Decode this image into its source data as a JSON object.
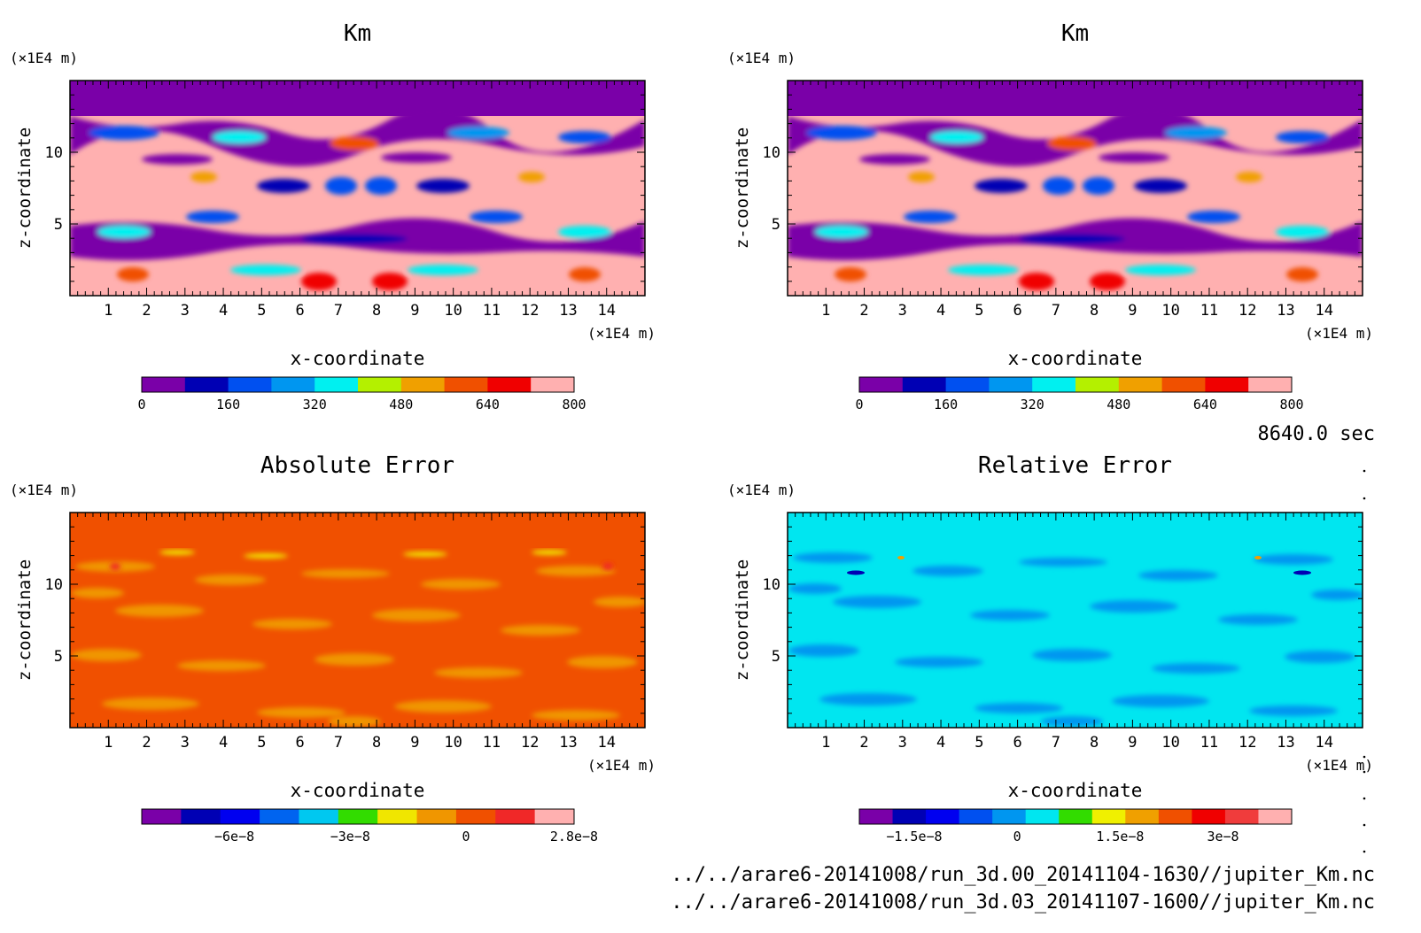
{
  "time_label": "8640.0 sec",
  "files": [
    "../../arare6-20141008/run_3d.00_20141104-1630//jupiter_Km.nc",
    "../../arare6-20141008/run_3d.03_20141107-1600//jupiter_Km.nc"
  ],
  "chart_data": [
    {
      "type": "heatmap",
      "title": "Km",
      "xlabel": "x-coordinate",
      "ylabel": "z-coordinate",
      "x_unit": "(×1E4 m)",
      "y_unit": "(×1E4 m)",
      "xlim": [
        0,
        15
      ],
      "ylim": [
        0,
        15
      ],
      "x_ticks": [
        "1",
        "2",
        "3",
        "4",
        "5",
        "6",
        "7",
        "8",
        "9",
        "10",
        "11",
        "12",
        "13",
        "14"
      ],
      "y_ticks": [
        "5",
        "10"
      ],
      "colorbar": {
        "colors": [
          "#7a00a8",
          "#0000b4",
          "#0050f0",
          "#0096f0",
          "#00f0f0",
          "#b4f000",
          "#f0a000",
          "#f05000",
          "#f00000",
          "#ffb0b0"
        ],
        "tick_labels": [
          "0",
          "160",
          "320",
          "480",
          "640",
          "800"
        ],
        "range": [
          0,
          800
        ]
      }
    },
    {
      "type": "heatmap",
      "title": "Km",
      "xlabel": "x-coordinate",
      "ylabel": "z-coordinate",
      "x_unit": "(×1E4 m)",
      "y_unit": "(×1E4 m)",
      "xlim": [
        0,
        15
      ],
      "ylim": [
        0,
        15
      ],
      "x_ticks": [
        "1",
        "2",
        "3",
        "4",
        "5",
        "6",
        "7",
        "8",
        "9",
        "10",
        "11",
        "12",
        "13",
        "14"
      ],
      "y_ticks": [
        "5",
        "10"
      ],
      "colorbar": {
        "colors": [
          "#7a00a8",
          "#0000b4",
          "#0050f0",
          "#0096f0",
          "#00f0f0",
          "#b4f000",
          "#f0a000",
          "#f05000",
          "#f00000",
          "#ffb0b0"
        ],
        "tick_labels": [
          "0",
          "160",
          "320",
          "480",
          "640",
          "800"
        ],
        "range": [
          0,
          800
        ]
      }
    },
    {
      "type": "heatmap",
      "title": "Absolute Error",
      "xlabel": "x-coordinate",
      "ylabel": "z-coordinate",
      "x_unit": "(×1E4 m)",
      "y_unit": "(×1E4 m)",
      "xlim": [
        0,
        15
      ],
      "ylim": [
        0,
        15
      ],
      "x_ticks": [
        "1",
        "2",
        "3",
        "4",
        "5",
        "6",
        "7",
        "8",
        "9",
        "10",
        "11",
        "12",
        "13",
        "14"
      ],
      "y_ticks": [
        "5",
        "10"
      ],
      "colorbar": {
        "colors": [
          "#7a00a8",
          "#0000b4",
          "#0000f0",
          "#0064f0",
          "#00c8f0",
          "#32dc00",
          "#f0e600",
          "#f09600",
          "#f05000",
          "#f02828",
          "#ffb0b0"
        ],
        "tick_labels": [
          "−6e−8",
          "−3e−8",
          "0",
          "2.8e−8"
        ],
        "tick_positions": [
          -6e-08,
          -3e-08,
          0,
          2.8e-08
        ],
        "range": [
          -8.4e-08,
          2.8e-08
        ]
      }
    },
    {
      "type": "heatmap",
      "title": "Relative Error",
      "xlabel": "x-coordinate",
      "ylabel": "z-coordinate",
      "x_unit": "(×1E4 m)",
      "y_unit": "(×1E4 m)",
      "xlim": [
        0,
        15
      ],
      "ylim": [
        0,
        15
      ],
      "x_ticks": [
        "1",
        "2",
        "3",
        "4",
        "5",
        "6",
        "7",
        "8",
        "9",
        "10",
        "11",
        "12",
        "13",
        "14"
      ],
      "y_ticks": [
        "5",
        "10"
      ],
      "colorbar": {
        "colors": [
          "#7a00a8",
          "#0000b4",
          "#0000f0",
          "#0050f0",
          "#0096f0",
          "#00e6f0",
          "#32dc00",
          "#f0f000",
          "#f0a000",
          "#f05000",
          "#f00000",
          "#f03c3c",
          "#ffb0b0"
        ],
        "tick_labels": [
          "−1.5e−8",
          "0",
          "1.5e−8",
          "3e−8"
        ],
        "tick_positions": [
          -1.5e-08,
          0,
          1.5e-08,
          3e-08
        ],
        "range": [
          -2.3e-08,
          4e-08
        ]
      }
    }
  ]
}
